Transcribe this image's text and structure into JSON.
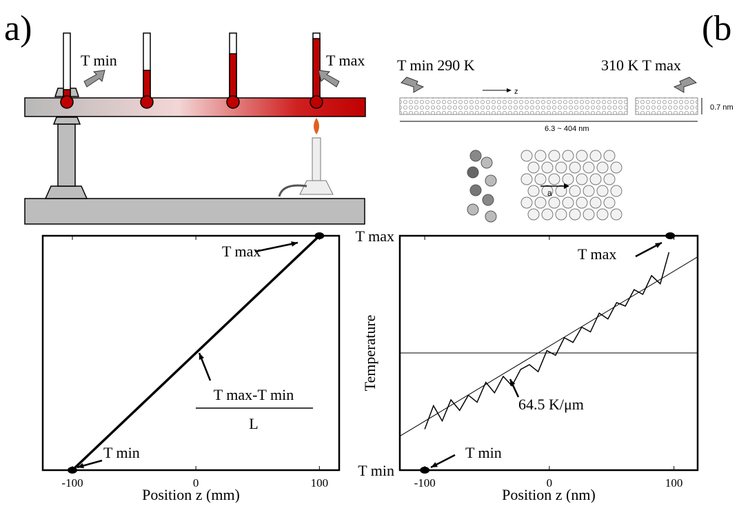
{
  "panel_labels": [
    "a)",
    "(b"
  ],
  "illustration_a": {
    "left_label": "T min",
    "right_label": "T max"
  },
  "illustration_b": {
    "left_label": "T min 290 K",
    "right_label": "310 K T max",
    "axis_label": "z",
    "diameter": "0.7 nm",
    "length": "6.3 ~ 404 nm",
    "lattice_vector": "a"
  },
  "chart_data": [
    {
      "type": "line",
      "xlabel": "Position z (mm)",
      "xlim": [
        -124,
        116
      ],
      "ylim": [
        290,
        310
      ],
      "xticks": [
        -100,
        0,
        100
      ],
      "annotations": [
        "T max",
        "T min",
        "T max-T min",
        "L"
      ],
      "series": [
        {
          "color": "#000000",
          "x": [
            -100,
            100
          ],
          "values": [
            290,
            310
          ]
        },
        {
          "color": "#000000",
          "style": "dots",
          "x": [
            -100,
            100
          ],
          "values": [
            290,
            310
          ]
        }
      ]
    },
    {
      "type": "line",
      "xlabel": "Position z (nm)",
      "ylabel": "Temperature",
      "xlim": [
        -120,
        119
      ],
      "ylim": [
        290,
        310
      ],
      "xticks": [
        -100,
        0,
        100
      ],
      "yticks": [
        {
          "value": 290,
          "label": "T min"
        },
        {
          "value": 310,
          "label": "T max"
        }
      ],
      "annotations": [
        "T max",
        "T min",
        "64.5 K/μm"
      ],
      "series": [
        {
          "color": "#000000",
          "x": [
            -100,
            -93,
            -86,
            -79,
            -72,
            -65,
            -58,
            -51,
            -44,
            -37,
            -30,
            -23,
            -16,
            -9,
            -2,
            5,
            12,
            19,
            26,
            33,
            40,
            47,
            54,
            61,
            68,
            75,
            82,
            89,
            96
          ],
          "values": [
            293.5,
            295.5,
            294.2,
            296.0,
            295.1,
            296.4,
            295.8,
            297.5,
            296.6,
            298.0,
            297.2,
            298.6,
            299.0,
            298.4,
            300.2,
            299.8,
            301.3,
            300.9,
            302.2,
            301.8,
            303.4,
            302.9,
            304.3,
            304.0,
            305.4,
            305.0,
            306.6,
            305.9,
            308.6
          ]
        },
        {
          "color": "#000000",
          "x": [
            -120,
            119
          ],
          "values": [
            292.9,
            308.2
          ]
        },
        {
          "color": "#000000",
          "x": [
            -120,
            119
          ],
          "values": [
            300,
            300
          ]
        },
        {
          "color": "#000000",
          "style": "dots",
          "x": [
            -100,
            97
          ],
          "values": [
            290,
            310
          ]
        }
      ]
    }
  ]
}
